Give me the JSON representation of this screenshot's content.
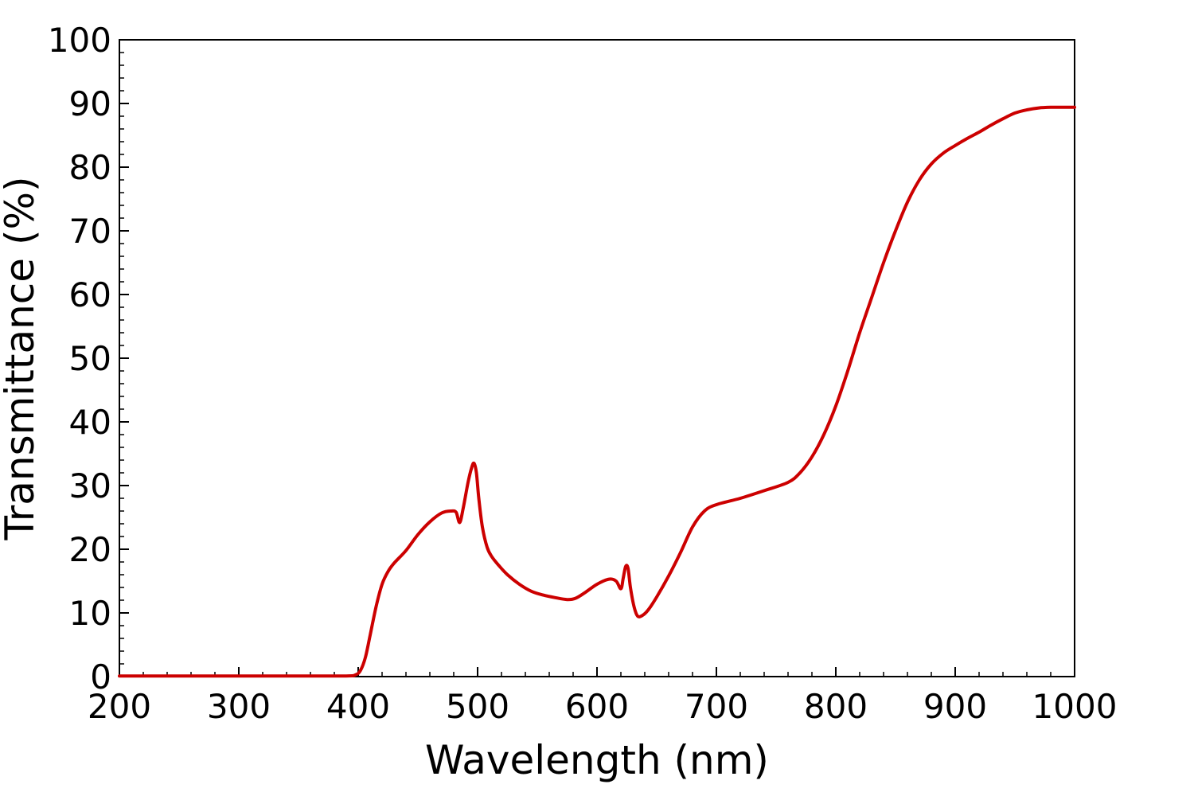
{
  "chart_data": {
    "type": "line",
    "title": "",
    "xlabel": "Wavelength (nm)",
    "ylabel": "Transmittance (%)",
    "xlim": [
      200,
      1000
    ],
    "ylim": [
      0,
      100
    ],
    "xticks": [
      200,
      300,
      400,
      500,
      600,
      700,
      800,
      900,
      1000
    ],
    "yticks": [
      0,
      10,
      20,
      30,
      40,
      50,
      60,
      70,
      80,
      90,
      100
    ],
    "xtick_labels": [
      "200",
      "300",
      "400",
      "500",
      "600",
      "700",
      "800",
      "900",
      "1000"
    ],
    "ytick_labels": [
      "0",
      "10",
      "20",
      "30",
      "40",
      "50",
      "60",
      "70",
      "80",
      "90",
      "100"
    ],
    "grid": false,
    "legend": false,
    "series": [
      {
        "color": "#cc0000",
        "x": [
          200,
          250,
          300,
          350,
          390,
          398,
          402,
          406,
          410,
          415,
          420,
          425,
          430,
          440,
          450,
          460,
          470,
          478,
          482,
          485,
          488,
          492,
          495,
          497,
          499,
          501,
          504,
          508,
          512,
          518,
          525,
          535,
          545,
          555,
          565,
          575,
          582,
          590,
          600,
          610,
          616,
          620,
          622,
          624,
          626,
          628,
          631,
          634,
          638,
          643,
          650,
          660,
          670,
          680,
          690,
          700,
          720,
          740,
          760,
          770,
          780,
          790,
          800,
          810,
          820,
          830,
          840,
          850,
          860,
          870,
          880,
          890,
          900,
          910,
          920,
          930,
          940,
          950,
          960,
          970,
          980,
          990,
          1000
        ],
        "y": [
          0.1,
          0.1,
          0.1,
          0.1,
          0.1,
          0.3,
          1.0,
          3.0,
          6.5,
          11.0,
          14.5,
          16.5,
          17.8,
          19.8,
          22.3,
          24.3,
          25.7,
          26.0,
          25.8,
          24.2,
          26.5,
          30.5,
          32.8,
          33.5,
          32.0,
          28.0,
          23.5,
          20.3,
          18.8,
          17.4,
          16.0,
          14.5,
          13.4,
          12.8,
          12.4,
          12.1,
          12.3,
          13.2,
          14.5,
          15.3,
          15.0,
          13.8,
          15.5,
          17.3,
          17.0,
          14.0,
          11.0,
          9.5,
          9.6,
          10.5,
          12.5,
          15.8,
          19.5,
          23.5,
          26.0,
          27.0,
          28.0,
          29.2,
          30.5,
          32.0,
          34.5,
          38.0,
          42.5,
          48.0,
          54.0,
          59.5,
          65.0,
          70.0,
          74.5,
          78.0,
          80.5,
          82.2,
          83.4,
          84.5,
          85.5,
          86.6,
          87.6,
          88.5,
          89.0,
          89.3,
          89.4,
          89.4,
          89.4
        ]
      }
    ]
  }
}
